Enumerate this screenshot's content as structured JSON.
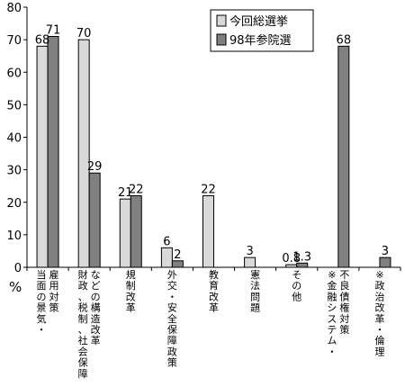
{
  "chart_data": {
    "type": "bar",
    "ylabel": "%",
    "ylim": [
      0,
      80
    ],
    "yticks": [
      "0",
      "10",
      "20",
      "30",
      "40",
      "50",
      "60",
      "70",
      "80"
    ],
    "grid": false,
    "legend_position": "top-center",
    "categories": [
      [
        "当面の景気・",
        "雇用対策"
      ],
      [
        "財政、税制、社会保障",
        "などの構造改革"
      ],
      [
        "規制改革"
      ],
      [
        "外交・安全保障政策"
      ],
      [
        "教育改革"
      ],
      [
        "憲法問題"
      ],
      [
        "その他"
      ],
      [
        "※金融システム・",
        "不良債権対策"
      ],
      [
        "※政治改革・倫理"
      ]
    ],
    "series": [
      {
        "name": "今回総選挙",
        "color": "#d9d9d9",
        "values": [
          68,
          70,
          21,
          6,
          22,
          3,
          0.8,
          null,
          null
        ],
        "labels": [
          "68",
          "70",
          "21",
          "6",
          "22",
          "3",
          "0.8",
          "",
          ""
        ]
      },
      {
        "name": "98年参院選",
        "color": "#808080",
        "values": [
          71,
          29,
          22,
          2,
          null,
          null,
          1.3,
          68,
          3
        ],
        "labels": [
          "71",
          "29",
          "22",
          "2",
          "",
          "",
          "1.3",
          "68",
          "3"
        ]
      }
    ]
  }
}
